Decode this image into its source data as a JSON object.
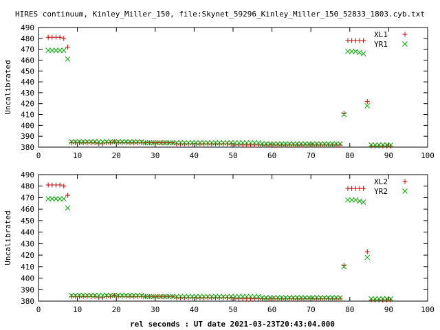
{
  "figure_title": "HIRES continuum, Kinley_Miller_150, file:Skynet_59296_Kinley_Miller_150_52833_1803.cyb.txt",
  "xlabel": "rel seconds : UT date 2021-03-23T20:43:04.000",
  "colors": {
    "xl": "#cc0000",
    "yr": "#00aa00",
    "axis": "#000000"
  },
  "chart_data": [
    {
      "type": "scatter",
      "ylabel": "Uncalibrated",
      "xlim": [
        0,
        100
      ],
      "ylim": [
        380,
        490
      ],
      "xticks": [
        0,
        10,
        20,
        30,
        40,
        50,
        60,
        70,
        80,
        90,
        100
      ],
      "yticks": [
        380,
        390,
        400,
        410,
        420,
        430,
        440,
        450,
        460,
        470,
        480,
        490
      ],
      "legend_position": "top-right",
      "grid": false,
      "series": [
        {
          "name": "XL1",
          "marker": "plus",
          "x": [
            2.5,
            3.5,
            4.5,
            5.5,
            6.5,
            7.5,
            8.5,
            9.5,
            10.5,
            11.5,
            12.5,
            13.5,
            14.5,
            15.5,
            16.5,
            17.5,
            18.5,
            19.5,
            20.5,
            21.5,
            22.5,
            23.5,
            24.5,
            25.5,
            26.5,
            27.5,
            28.5,
            29.5,
            30.5,
            31.5,
            32.5,
            33.5,
            34.5,
            35.5,
            36.5,
            37.5,
            38.5,
            39.5,
            40.5,
            41.5,
            42.5,
            43.5,
            44.5,
            45.5,
            46.5,
            47.5,
            48.5,
            49.5,
            50.5,
            51.5,
            52.5,
            53.5,
            54.5,
            55.5,
            56.5,
            57.5,
            58.5,
            59.5,
            60.5,
            61.5,
            62.5,
            63.5,
            64.5,
            65.5,
            66.5,
            67.5,
            68.5,
            69.5,
            70.5,
            71.5,
            72.5,
            73.5,
            74.5,
            75.5,
            76.5,
            77.5,
            78.5,
            79.5,
            80.5,
            81.5,
            82.5,
            83.5,
            84.5,
            85.5,
            86.5,
            87.5,
            88.5,
            89.5,
            90.5
          ],
          "y": [
            481,
            481,
            481,
            481,
            480,
            472,
            384,
            384,
            384,
            384,
            384,
            384,
            384,
            383,
            383,
            384,
            384,
            385,
            384,
            384,
            384,
            384,
            384,
            384,
            384,
            384,
            384,
            384,
            384,
            384,
            384,
            384,
            384,
            383,
            383,
            383,
            383,
            383,
            383,
            383,
            383,
            383,
            383,
            383,
            383,
            383,
            383,
            383,
            382,
            382,
            382,
            382,
            382,
            382,
            382,
            382,
            382,
            382,
            382,
            382,
            382,
            382,
            382,
            382,
            382,
            382,
            382,
            382,
            382,
            382,
            382,
            382,
            382,
            382,
            382,
            382,
            411,
            478,
            478,
            478,
            478,
            478,
            422,
            381,
            381,
            381,
            381,
            381,
            381
          ]
        },
        {
          "name": "YR1",
          "marker": "cross",
          "x": [
            2.5,
            3.5,
            4.5,
            5.5,
            6.5,
            7.5,
            8.5,
            9.5,
            10.5,
            11.5,
            12.5,
            13.5,
            14.5,
            15.5,
            16.5,
            17.5,
            18.5,
            19.5,
            20.5,
            21.5,
            22.5,
            23.5,
            24.5,
            25.5,
            26.5,
            27.5,
            28.5,
            29.5,
            30.5,
            31.5,
            32.5,
            33.5,
            34.5,
            35.5,
            36.5,
            37.5,
            38.5,
            39.5,
            40.5,
            41.5,
            42.5,
            43.5,
            44.5,
            45.5,
            46.5,
            47.5,
            48.5,
            49.5,
            50.5,
            51.5,
            52.5,
            53.5,
            54.5,
            55.5,
            56.5,
            57.5,
            58.5,
            59.5,
            60.5,
            61.5,
            62.5,
            63.5,
            64.5,
            65.5,
            66.5,
            67.5,
            68.5,
            69.5,
            70.5,
            71.5,
            72.5,
            73.5,
            74.5,
            75.5,
            76.5,
            77.5,
            78.5,
            79.5,
            80.5,
            81.5,
            82.5,
            83.5,
            84.5,
            85.5,
            86.5,
            87.5,
            88.5,
            89.5,
            90.5
          ],
          "y": [
            469,
            469,
            469,
            469,
            469,
            461,
            385,
            385,
            385,
            385,
            385,
            385,
            385,
            385,
            385,
            385,
            385,
            385,
            385,
            385,
            385,
            385,
            385,
            385,
            385,
            384,
            384,
            384,
            384,
            384,
            384,
            384,
            384,
            384,
            384,
            384,
            384,
            384,
            384,
            384,
            384,
            384,
            384,
            384,
            384,
            384,
            384,
            384,
            384,
            384,
            384,
            384,
            384,
            384,
            384,
            383,
            383,
            383,
            383,
            383,
            383,
            383,
            383,
            383,
            383,
            383,
            383,
            383,
            383,
            383,
            383,
            383,
            383,
            383,
            383,
            383,
            410,
            468,
            468,
            468,
            467,
            466,
            418,
            382,
            382,
            382,
            382,
            382,
            382
          ]
        }
      ]
    },
    {
      "type": "scatter",
      "ylabel": "Uncalibrated",
      "xlim": [
        0,
        100
      ],
      "ylim": [
        380,
        490
      ],
      "xticks": [
        0,
        10,
        20,
        30,
        40,
        50,
        60,
        70,
        80,
        90,
        100
      ],
      "yticks": [
        380,
        390,
        400,
        410,
        420,
        430,
        440,
        450,
        460,
        470,
        480,
        490
      ],
      "legend_position": "top-right",
      "grid": false,
      "series": [
        {
          "name": "XL2",
          "marker": "plus",
          "x": [
            2.5,
            3.5,
            4.5,
            5.5,
            6.5,
            7.5,
            8.5,
            9.5,
            10.5,
            11.5,
            12.5,
            13.5,
            14.5,
            15.5,
            16.5,
            17.5,
            18.5,
            19.5,
            20.5,
            21.5,
            22.5,
            23.5,
            24.5,
            25.5,
            26.5,
            27.5,
            28.5,
            29.5,
            30.5,
            31.5,
            32.5,
            33.5,
            34.5,
            35.5,
            36.5,
            37.5,
            38.5,
            39.5,
            40.5,
            41.5,
            42.5,
            43.5,
            44.5,
            45.5,
            46.5,
            47.5,
            48.5,
            49.5,
            50.5,
            51.5,
            52.5,
            53.5,
            54.5,
            55.5,
            56.5,
            57.5,
            58.5,
            59.5,
            60.5,
            61.5,
            62.5,
            63.5,
            64.5,
            65.5,
            66.5,
            67.5,
            68.5,
            69.5,
            70.5,
            71.5,
            72.5,
            73.5,
            74.5,
            75.5,
            76.5,
            77.5,
            78.5,
            79.5,
            80.5,
            81.5,
            82.5,
            83.5,
            84.5,
            85.5,
            86.5,
            87.5,
            88.5,
            89.5,
            90.5
          ],
          "y": [
            481,
            481,
            481,
            481,
            480,
            472,
            384,
            384,
            384,
            384,
            384,
            384,
            384,
            383,
            383,
            384,
            384,
            385,
            384,
            384,
            384,
            384,
            384,
            384,
            384,
            384,
            384,
            384,
            384,
            384,
            384,
            384,
            384,
            383,
            383,
            383,
            383,
            383,
            383,
            383,
            383,
            383,
            383,
            383,
            383,
            383,
            383,
            383,
            382,
            382,
            382,
            382,
            382,
            382,
            382,
            382,
            382,
            382,
            382,
            382,
            382,
            382,
            382,
            382,
            382,
            382,
            382,
            382,
            382,
            382,
            382,
            382,
            382,
            382,
            382,
            382,
            411,
            478,
            478,
            478,
            478,
            478,
            423,
            381,
            381,
            381,
            381,
            381,
            381
          ]
        },
        {
          "name": "YR2",
          "marker": "cross",
          "x": [
            2.5,
            3.5,
            4.5,
            5.5,
            6.5,
            7.5,
            8.5,
            9.5,
            10.5,
            11.5,
            12.5,
            13.5,
            14.5,
            15.5,
            16.5,
            17.5,
            18.5,
            19.5,
            20.5,
            21.5,
            22.5,
            23.5,
            24.5,
            25.5,
            26.5,
            27.5,
            28.5,
            29.5,
            30.5,
            31.5,
            32.5,
            33.5,
            34.5,
            35.5,
            36.5,
            37.5,
            38.5,
            39.5,
            40.5,
            41.5,
            42.5,
            43.5,
            44.5,
            45.5,
            46.5,
            47.5,
            48.5,
            49.5,
            50.5,
            51.5,
            52.5,
            53.5,
            54.5,
            55.5,
            56.5,
            57.5,
            58.5,
            59.5,
            60.5,
            61.5,
            62.5,
            63.5,
            64.5,
            65.5,
            66.5,
            67.5,
            68.5,
            69.5,
            70.5,
            71.5,
            72.5,
            73.5,
            74.5,
            75.5,
            76.5,
            77.5,
            78.5,
            79.5,
            80.5,
            81.5,
            82.5,
            83.5,
            84.5,
            85.5,
            86.5,
            87.5,
            88.5,
            89.5,
            90.5
          ],
          "y": [
            469,
            469,
            469,
            469,
            469,
            461,
            385,
            385,
            385,
            385,
            385,
            385,
            385,
            385,
            385,
            385,
            385,
            385,
            385,
            385,
            385,
            385,
            385,
            385,
            385,
            384,
            384,
            384,
            384,
            384,
            384,
            384,
            384,
            384,
            384,
            384,
            384,
            384,
            384,
            384,
            384,
            384,
            384,
            384,
            384,
            384,
            384,
            384,
            384,
            384,
            384,
            384,
            384,
            384,
            384,
            383,
            383,
            383,
            383,
            383,
            383,
            383,
            383,
            383,
            383,
            383,
            383,
            383,
            383,
            383,
            383,
            383,
            383,
            383,
            383,
            383,
            410,
            468,
            468,
            468,
            467,
            466,
            418,
            382,
            382,
            382,
            382,
            382,
            382
          ]
        }
      ]
    }
  ]
}
